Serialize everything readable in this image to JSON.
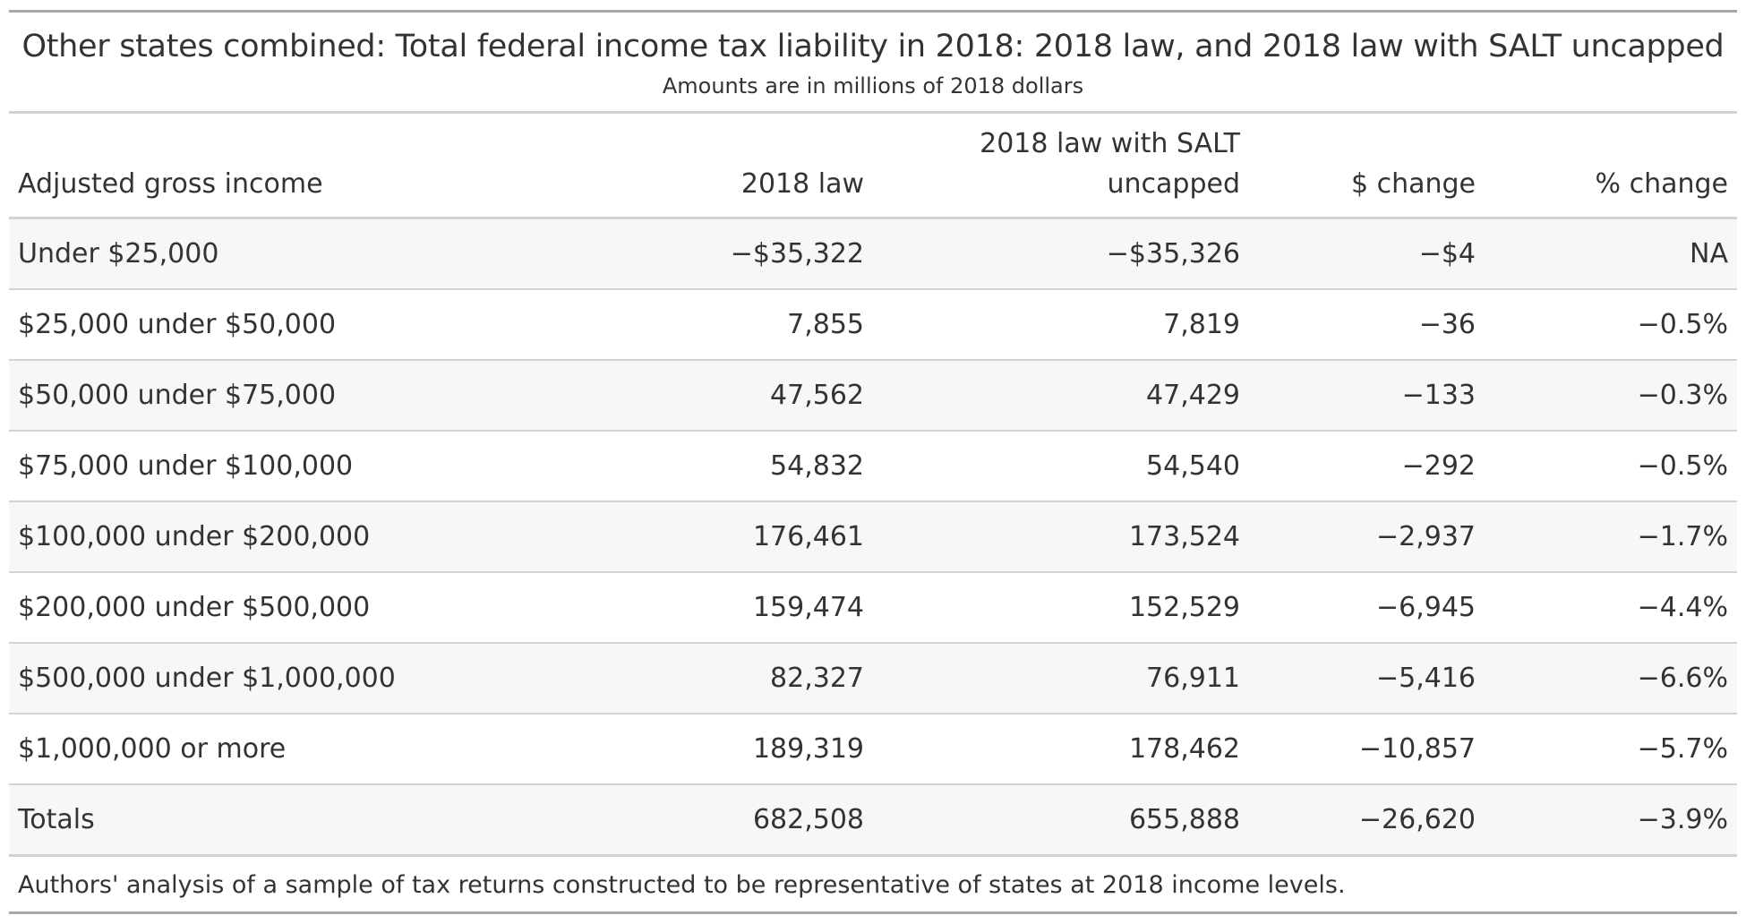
{
  "header": {
    "title": "Other states combined: Total federal income tax liability in 2018: 2018 law, and 2018 law with SALT uncapped",
    "subtitle": "Amounts are in millions of 2018 dollars"
  },
  "table": {
    "columns": [
      "Adjusted gross income",
      "2018 law",
      "2018 law with SALT uncapped",
      "$ change",
      "% change"
    ],
    "rows": [
      [
        "Under $25,000",
        "−$35,322",
        "−$35,326",
        "−$4",
        "NA"
      ],
      [
        "$25,000 under $50,000",
        "7,855",
        "7,819",
        "−36",
        "−0.5%"
      ],
      [
        "$50,000 under $75,000",
        "47,562",
        "47,429",
        "−133",
        "−0.3%"
      ],
      [
        "$75,000 under $100,000",
        "54,832",
        "54,540",
        "−292",
        "−0.5%"
      ],
      [
        "$100,000 under $200,000",
        "176,461",
        "173,524",
        "−2,937",
        "−1.7%"
      ],
      [
        "$200,000 under $500,000",
        "159,474",
        "152,529",
        "−6,945",
        "−4.4%"
      ],
      [
        "$500,000 under $1,000,000",
        "82,327",
        "76,911",
        "−5,416",
        "−6.6%"
      ],
      [
        "$1,000,000 or more",
        "189,319",
        "178,462",
        "−10,857",
        "−5.7%"
      ],
      [
        "Totals",
        "682,508",
        "655,888",
        "−26,620",
        "−3.9%"
      ]
    ]
  },
  "footnote": "Authors' analysis of a sample of tax returns constructed to be representative of states at 2018 income levels."
}
